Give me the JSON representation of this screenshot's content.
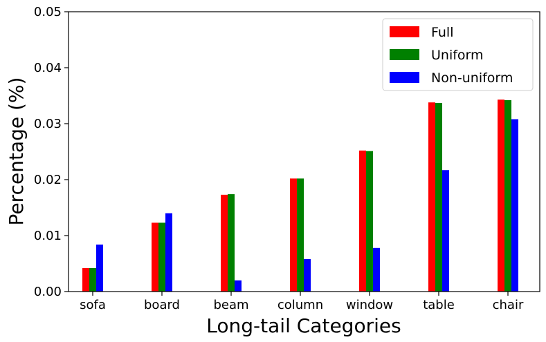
{
  "chart_data": {
    "type": "bar",
    "title": "",
    "xlabel": "Long-tail Categories",
    "ylabel": "Percentage (%)",
    "categories": [
      "sofa",
      "board",
      "beam",
      "column",
      "window",
      "table",
      "chair"
    ],
    "series": [
      {
        "name": "Full",
        "color": "#ff0000",
        "values": [
          0.0042,
          0.0123,
          0.0173,
          0.0202,
          0.0252,
          0.0338,
          0.0343
        ]
      },
      {
        "name": "Uniform",
        "color": "#008000",
        "values": [
          0.0042,
          0.0123,
          0.0174,
          0.0202,
          0.0251,
          0.0337,
          0.0342
        ]
      },
      {
        "name": "Non-uniform",
        "color": "#0000ff",
        "values": [
          0.0084,
          0.014,
          0.002,
          0.0058,
          0.0078,
          0.0217,
          0.0308
        ]
      }
    ],
    "ylim": [
      0,
      0.05
    ],
    "yticks": [
      "0.00",
      "0.01",
      "0.02",
      "0.03",
      "0.04",
      "0.05"
    ],
    "grid": false,
    "legend_position": "top-right"
  }
}
